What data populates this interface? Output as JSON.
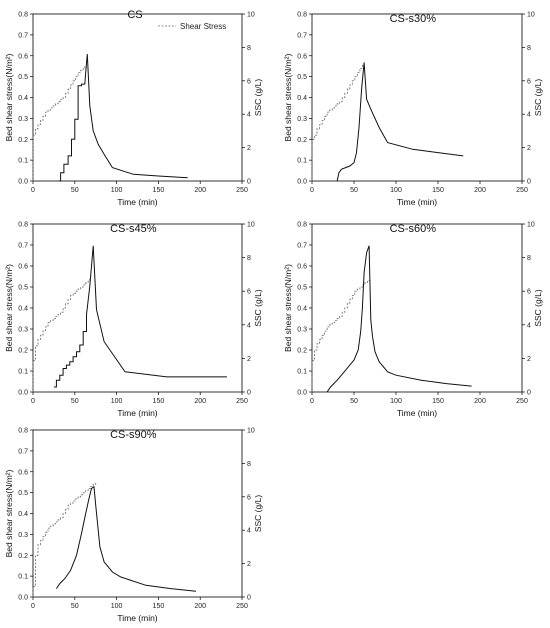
{
  "chart_data": [
    {
      "type": "line",
      "title": "CS",
      "xlabel": "Time (min)",
      "ylabel": "Bed shear stress(N/m²)",
      "y2label": "SSC (g/L)",
      "xlim": [
        0,
        250
      ],
      "ylim": [
        0,
        0.8
      ],
      "y2lim": [
        0,
        10
      ],
      "xticks": [
        0,
        50,
        100,
        150,
        200,
        250
      ],
      "yticks": [
        0.0,
        0.1,
        0.2,
        0.3,
        0.4,
        0.5,
        0.6,
        0.7,
        0.8
      ],
      "y2ticks": [
        0,
        2,
        4,
        6,
        8,
        10
      ],
      "legend": {
        "label": "Shear Stress",
        "position": "top-right"
      },
      "series": [
        {
          "name": "Shear Stress",
          "axis": "left",
          "style": "dashed-step",
          "x": [
            0,
            0,
            3,
            6,
            9,
            12,
            15,
            18,
            21,
            24,
            27,
            30,
            33,
            36,
            39,
            42,
            45,
            48,
            51,
            54,
            57,
            60,
            62
          ],
          "y": [
            0,
            0.22,
            0.25,
            0.27,
            0.29,
            0.31,
            0.33,
            0.34,
            0.35,
            0.36,
            0.37,
            0.38,
            0.39,
            0.4,
            0.42,
            0.44,
            0.46,
            0.48,
            0.5,
            0.52,
            0.53,
            0.54,
            0.55
          ]
        },
        {
          "axis": "right",
          "style": "solid",
          "x": [
            30,
            33,
            33,
            37,
            37,
            42,
            42,
            46,
            46,
            50,
            50,
            54,
            54,
            58,
            58,
            62,
            63,
            65,
            68,
            72,
            78,
            85,
            95,
            120,
            150,
            185
          ],
          "y": [
            0,
            0,
            0.5,
            0.5,
            1.0,
            1.0,
            1.5,
            1.5,
            2.5,
            2.5,
            3.7,
            3.7,
            5.7,
            5.7,
            5.8,
            5.8,
            6.5,
            7.6,
            4.5,
            3.0,
            2.2,
            1.6,
            0.8,
            0.4,
            0.3,
            0.2
          ]
        }
      ]
    },
    {
      "type": "line",
      "title": "CS-s30%",
      "xlabel": "Time (min)",
      "ylabel": "Bed shear stress(N/m²)",
      "y2label": "SSC (g/L)",
      "xlim": [
        0,
        250
      ],
      "ylim": [
        0,
        0.8
      ],
      "y2lim": [
        0,
        10
      ],
      "xticks": [
        0,
        50,
        100,
        150,
        200,
        250
      ],
      "yticks": [
        0.0,
        0.1,
        0.2,
        0.3,
        0.4,
        0.5,
        0.6,
        0.7,
        0.8
      ],
      "y2ticks": [
        0,
        2,
        4,
        6,
        8,
        10
      ],
      "series": [
        {
          "axis": "left",
          "style": "dashed-step",
          "x": [
            0,
            0,
            3,
            6,
            9,
            12,
            15,
            18,
            21,
            24,
            27,
            30,
            33,
            36,
            39,
            42,
            45,
            48,
            51,
            54,
            57,
            60
          ],
          "y": [
            0,
            0.2,
            0.22,
            0.25,
            0.27,
            0.29,
            0.31,
            0.33,
            0.34,
            0.35,
            0.36,
            0.37,
            0.38,
            0.4,
            0.42,
            0.44,
            0.46,
            0.48,
            0.5,
            0.52,
            0.54,
            0.56
          ]
        },
        {
          "axis": "right",
          "style": "solid",
          "x": [
            30,
            32,
            35,
            40,
            45,
            50,
            53,
            56,
            59,
            62,
            65,
            70,
            80,
            90,
            120,
            150,
            180
          ],
          "y": [
            0,
            0.5,
            0.7,
            0.8,
            0.9,
            1.1,
            1.7,
            3.2,
            5.5,
            7.1,
            4.9,
            4.3,
            3.2,
            2.3,
            1.9,
            1.7,
            1.5
          ]
        }
      ]
    },
    {
      "type": "line",
      "title": "CS-s45%",
      "xlabel": "Time (min)",
      "ylabel": "Bed shear stress(N/m²)",
      "y2label": "SSC (g/L)",
      "xlim": [
        0,
        250
      ],
      "ylim": [
        0,
        0.8
      ],
      "y2lim": [
        0,
        10
      ],
      "xticks": [
        0,
        50,
        100,
        150,
        200,
        250
      ],
      "yticks": [
        0.0,
        0.1,
        0.2,
        0.3,
        0.4,
        0.5,
        0.6,
        0.7,
        0.8
      ],
      "y2ticks": [
        0,
        2,
        4,
        6,
        8,
        10
      ],
      "series": [
        {
          "axis": "left",
          "style": "dashed-step",
          "x": [
            0,
            0,
            3,
            6,
            9,
            12,
            15,
            18,
            21,
            24,
            27,
            30,
            33,
            36,
            39,
            42,
            45,
            48,
            51,
            54,
            57,
            60,
            63,
            66,
            68
          ],
          "y": [
            0,
            0.15,
            0.22,
            0.25,
            0.27,
            0.29,
            0.31,
            0.33,
            0.34,
            0.35,
            0.36,
            0.37,
            0.38,
            0.4,
            0.42,
            0.44,
            0.46,
            0.47,
            0.48,
            0.49,
            0.5,
            0.51,
            0.52,
            0.53,
            0.54
          ]
        },
        {
          "axis": "right",
          "style": "solid",
          "x": [
            25,
            28,
            28,
            32,
            32,
            36,
            36,
            40,
            40,
            44,
            44,
            48,
            48,
            52,
            52,
            56,
            56,
            60,
            60,
            64,
            64,
            68,
            72,
            76,
            85,
            110,
            160,
            232
          ],
          "y": [
            0.3,
            0.3,
            0.7,
            0.7,
            1.0,
            1.0,
            1.4,
            1.4,
            1.6,
            1.6,
            1.8,
            1.8,
            2.1,
            2.1,
            2.4,
            2.4,
            2.8,
            2.8,
            3.6,
            3.6,
            4.6,
            6.3,
            8.7,
            4.9,
            3.0,
            1.2,
            0.9,
            0.9
          ]
        }
      ]
    },
    {
      "type": "line",
      "title": "CS-s60%",
      "xlabel": "Time (min)",
      "ylabel": "Bed shear stress(N/m²)",
      "y2label": "SSC (g/L)",
      "xlim": [
        0,
        250
      ],
      "ylim": [
        0,
        0.8
      ],
      "y2lim": [
        0,
        10
      ],
      "xticks": [
        0,
        50,
        100,
        150,
        200,
        250
      ],
      "yticks": [
        0.0,
        0.1,
        0.2,
        0.3,
        0.4,
        0.5,
        0.6,
        0.7,
        0.8
      ],
      "y2ticks": [
        0,
        2,
        4,
        6,
        8,
        10
      ],
      "series": [
        {
          "axis": "left",
          "style": "dashed-step",
          "x": [
            0,
            0,
            3,
            6,
            9,
            12,
            15,
            18,
            21,
            24,
            27,
            30,
            33,
            36,
            39,
            42,
            45,
            48,
            51,
            54,
            57,
            60,
            63,
            66,
            69
          ],
          "y": [
            0,
            0.15,
            0.2,
            0.23,
            0.25,
            0.27,
            0.29,
            0.31,
            0.32,
            0.33,
            0.34,
            0.35,
            0.36,
            0.38,
            0.4,
            0.42,
            0.44,
            0.46,
            0.48,
            0.49,
            0.5,
            0.51,
            0.52,
            0.53,
            0.54
          ]
        },
        {
          "axis": "right",
          "style": "solid",
          "x": [
            18,
            22,
            26,
            30,
            35,
            40,
            45,
            50,
            55,
            58,
            60,
            62,
            65,
            68,
            70,
            72,
            75,
            80,
            90,
            100,
            130,
            160,
            190
          ],
          "y": [
            0,
            0.3,
            0.5,
            0.7,
            1.0,
            1.3,
            1.6,
            1.9,
            2.5,
            3.6,
            5.0,
            7.1,
            8.3,
            8.7,
            4.3,
            3.3,
            2.4,
            1.8,
            1.2,
            1.0,
            0.7,
            0.5,
            0.35
          ]
        }
      ]
    },
    {
      "type": "line",
      "title": "CS-s90%",
      "xlabel": "Time (min)",
      "ylabel": "Bed shear stress(N/m²)",
      "y2label": "SSC (g/L)",
      "xlim": [
        0,
        250
      ],
      "ylim": [
        0,
        0.8
      ],
      "y2lim": [
        0,
        10
      ],
      "xticks": [
        0,
        50,
        100,
        150,
        200,
        250
      ],
      "yticks": [
        0.0,
        0.1,
        0.2,
        0.3,
        0.4,
        0.5,
        0.6,
        0.7,
        0.8
      ],
      "y2ticks": [
        0,
        2,
        4,
        6,
        8,
        10
      ],
      "series": [
        {
          "axis": "left",
          "style": "dashed-step",
          "x": [
            0,
            0,
            3,
            6,
            9,
            12,
            15,
            18,
            21,
            24,
            27,
            30,
            33,
            36,
            39,
            42,
            45,
            48,
            51,
            54,
            57,
            60,
            63,
            66,
            69,
            72,
            75
          ],
          "y": [
            0,
            0.05,
            0.2,
            0.25,
            0.27,
            0.29,
            0.31,
            0.33,
            0.34,
            0.35,
            0.36,
            0.37,
            0.38,
            0.4,
            0.42,
            0.44,
            0.45,
            0.46,
            0.47,
            0.48,
            0.49,
            0.5,
            0.51,
            0.52,
            0.53,
            0.54,
            0.55
          ]
        },
        {
          "axis": "right",
          "style": "solid",
          "x": [
            28,
            32,
            38,
            45,
            52,
            58,
            63,
            67,
            70,
            73,
            75,
            80,
            85,
            95,
            105,
            135,
            165,
            195
          ],
          "y": [
            0.5,
            0.8,
            1.1,
            1.6,
            2.5,
            3.8,
            5.0,
            5.9,
            6.5,
            6.6,
            5.5,
            3.0,
            2.1,
            1.5,
            1.2,
            0.7,
            0.5,
            0.35
          ]
        }
      ]
    }
  ]
}
